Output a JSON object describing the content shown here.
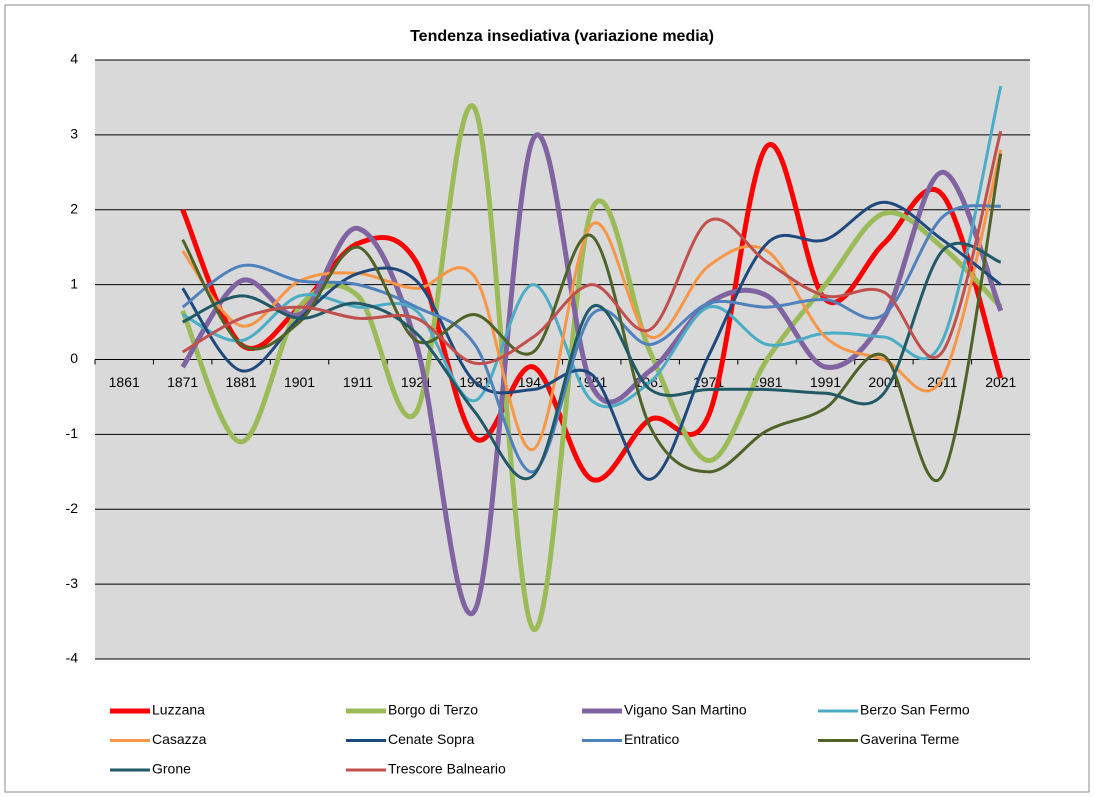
{
  "chart_data": {
    "type": "line",
    "title": "Tendenza insediativa (variazione media)",
    "categories": [
      "1861",
      "1871",
      "1881",
      "1901",
      "1911",
      "1921",
      "1931",
      "1941",
      "1951",
      "1961",
      "1971",
      "1981",
      "1991",
      "2001",
      "2011",
      "2021"
    ],
    "ylim": [
      -4,
      4
    ],
    "yticks": [
      -4,
      -3,
      -2,
      -1,
      0,
      1,
      2,
      3,
      4
    ],
    "grid": true,
    "smooth": true,
    "legend": "bottom",
    "series": [
      {
        "name": "Luzzana",
        "color": "#ff0000",
        "width": 5,
        "values": [
          null,
          2.0,
          0.2,
          0.7,
          1.55,
          1.3,
          -1.05,
          -0.1,
          -1.6,
          -0.8,
          -0.75,
          2.85,
          0.8,
          1.55,
          2.2,
          -0.25
        ]
      },
      {
        "name": "Borgo di Terzo",
        "color": "#9bbb59",
        "width": 5,
        "values": [
          null,
          0.65,
          -1.1,
          0.7,
          0.85,
          -0.7,
          3.35,
          -3.6,
          2.0,
          0.1,
          -1.35,
          0.0,
          1.0,
          1.95,
          1.5,
          0.7
        ]
      },
      {
        "name": "Vigano San Martino",
        "color": "#8064a2",
        "width": 5,
        "values": [
          null,
          -0.1,
          1.05,
          0.6,
          1.75,
          0.2,
          -3.35,
          2.95,
          -0.35,
          -0.15,
          0.75,
          0.85,
          -0.1,
          0.55,
          2.5,
          0.65
        ]
      },
      {
        "name": "Berzo San Fermo",
        "color": "#4bacc6",
        "width": 3,
        "values": [
          null,
          0.6,
          0.25,
          0.85,
          0.7,
          0.65,
          -0.55,
          1.0,
          -0.55,
          -0.3,
          0.7,
          0.2,
          0.35,
          0.3,
          0.25,
          3.65
        ]
      },
      {
        "name": "Casazza",
        "color": "#f79646",
        "width": 3,
        "values": [
          null,
          1.45,
          0.45,
          1.05,
          1.15,
          0.95,
          1.1,
          -1.2,
          1.8,
          0.3,
          1.25,
          1.45,
          0.3,
          0.0,
          -0.25,
          2.8
        ]
      },
      {
        "name": "Cenate Sopra",
        "color": "#1f497d",
        "width": 3,
        "values": [
          null,
          0.95,
          -0.15,
          0.55,
          1.15,
          1.05,
          -0.3,
          -0.4,
          -0.2,
          -1.6,
          0.05,
          1.55,
          1.6,
          2.1,
          1.6,
          1.0
        ]
      },
      {
        "name": "Entratico",
        "color": "#4f81bd",
        "width": 3,
        "values": [
          null,
          0.7,
          1.25,
          1.05,
          1.0,
          0.7,
          0.2,
          -1.5,
          0.6,
          0.2,
          0.75,
          0.7,
          0.8,
          0.6,
          1.9,
          2.05
        ]
      },
      {
        "name": "Gaverina Terme",
        "color": "#4f6228",
        "width": 3,
        "values": [
          null,
          1.6,
          0.2,
          0.5,
          1.5,
          0.25,
          0.6,
          0.1,
          1.65,
          -0.9,
          -1.5,
          -0.95,
          -0.65,
          0.05,
          -1.55,
          2.75
        ]
      },
      {
        "name": "Grone",
        "color": "#215967",
        "width": 3,
        "values": [
          null,
          0.5,
          0.85,
          0.55,
          0.75,
          0.35,
          -0.7,
          -1.55,
          0.7,
          -0.4,
          -0.4,
          -0.4,
          -0.45,
          -0.45,
          1.45,
          1.3
        ]
      },
      {
        "name": "Trescore Balneario",
        "color": "#c0504d",
        "width": 3,
        "values": [
          null,
          0.1,
          0.55,
          0.7,
          0.55,
          0.55,
          -0.05,
          0.3,
          1.0,
          0.4,
          1.85,
          1.3,
          0.85,
          0.9,
          0.1,
          3.05
        ]
      }
    ]
  }
}
